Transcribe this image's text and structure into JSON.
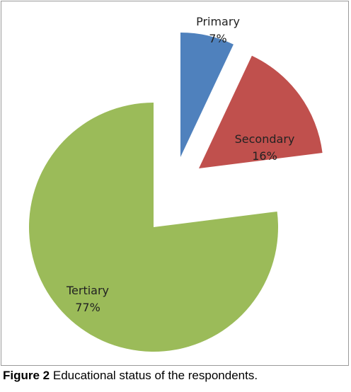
{
  "chart_data": {
    "type": "pie",
    "categories": [
      "Primary",
      "Secondary",
      "Tertiary"
    ],
    "values": [
      7,
      16,
      77
    ],
    "value_labels": [
      "7%",
      "16%",
      "77%"
    ],
    "colors": [
      "#4f81bd",
      "#c0504d",
      "#9bbb59"
    ],
    "exploded": true,
    "legend": "none"
  },
  "caption": {
    "figure_label": "Figure 2",
    "text": "Educational status of the respondents."
  }
}
